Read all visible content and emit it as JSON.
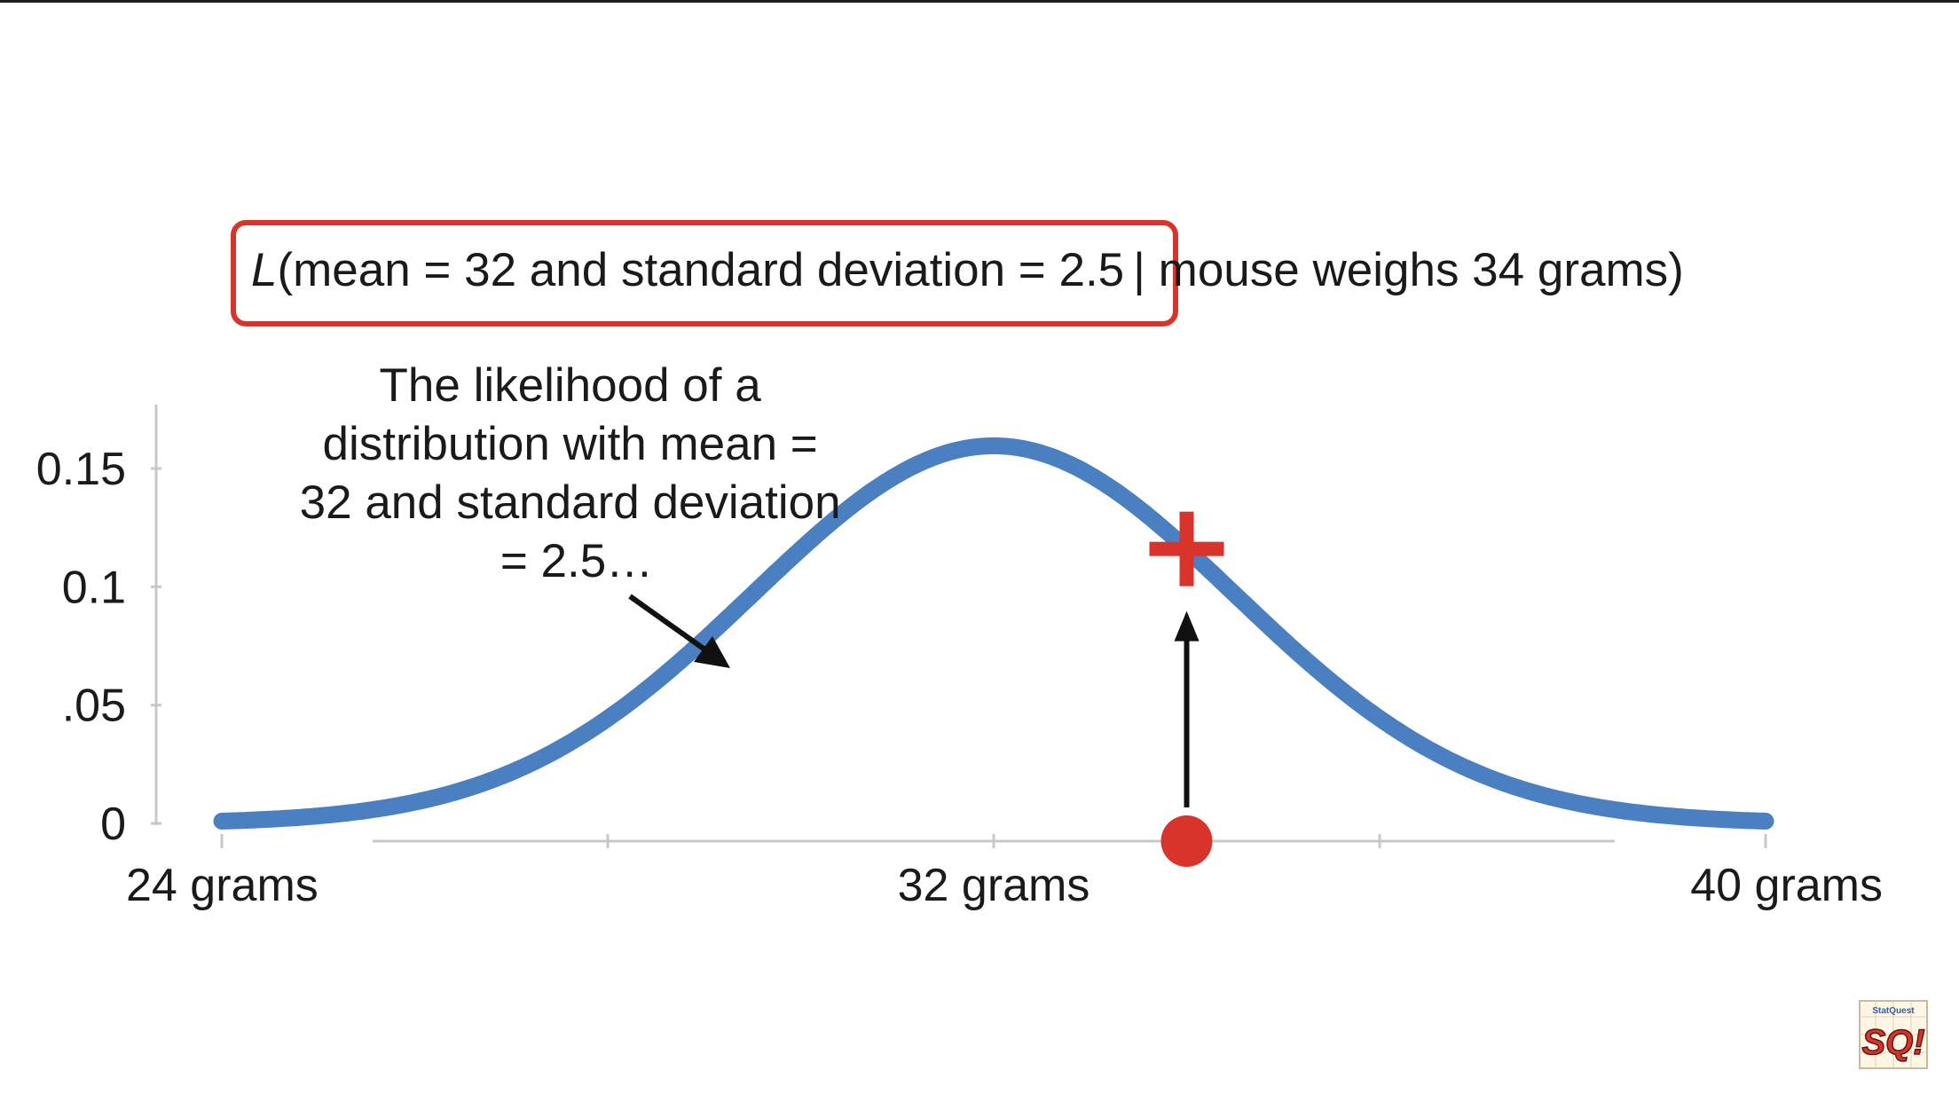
{
  "formula": {
    "l_symbol": "L",
    "highlighted": "(mean = 32 and standard deviation = 2.5",
    "rest": "| mouse weighs 34 grams)"
  },
  "annotation": {
    "lines": [
      "The likelihood of a",
      "distribution with mean =",
      "32 and standard deviation",
      "= 2.5…"
    ]
  },
  "logo": {
    "text": "SQ!",
    "small_text": "StatQuest"
  },
  "colors": {
    "curve": "#4a7fc1",
    "highlight": "#d9342b",
    "axis": "#c8c8c8",
    "text": "#1a1a1a"
  },
  "chart_data": {
    "type": "line",
    "title": "",
    "xlabel": "",
    "ylabel": "",
    "x_ticks": [
      {
        "value": 24,
        "label": "24 grams"
      },
      {
        "value": 32,
        "label": "32 grams"
      },
      {
        "value": 40,
        "label": "40 grams"
      }
    ],
    "x_minor_ticks": [
      24,
      28,
      32,
      36,
      40
    ],
    "y_ticks": [
      {
        "value": 0,
        "label": "0"
      },
      {
        "value": 0.05,
        "label": ".05"
      },
      {
        "value": 0.1,
        "label": "0.1"
      },
      {
        "value": 0.15,
        "label": "0.15"
      }
    ],
    "xlim": [
      24,
      40
    ],
    "ylim": [
      0,
      0.18
    ],
    "series": [
      {
        "name": "Normal(mean = 32, sd = 2.5)",
        "mean": 32,
        "sd": 2.5
      }
    ],
    "observation": {
      "x": 34,
      "label": "mouse weighs 34 grams"
    },
    "likelihood_point": {
      "x": 34,
      "y": 0.116
    }
  }
}
